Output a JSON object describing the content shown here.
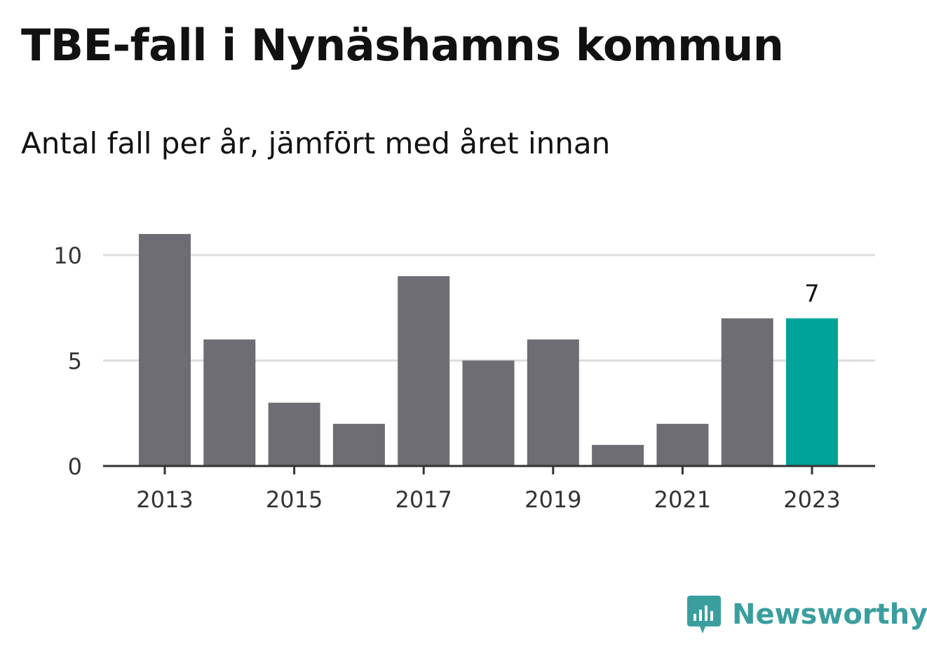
{
  "title": "TBE-fall i Nynäshamns kommun",
  "subtitle": "Antal fall per år, jämfört med året innan",
  "brand": {
    "name": "Newsworthy",
    "color": "#3a9e9e",
    "icon": "chart-speech-bubble-icon"
  },
  "colors": {
    "bar": "#6e6d73",
    "highlight": "#00a39a",
    "grid": "#dddddd",
    "axis": "#333333"
  },
  "chart_data": {
    "type": "bar",
    "categories": [
      "2013",
      "2014",
      "2015",
      "2016",
      "2017",
      "2018",
      "2019",
      "2020",
      "2021",
      "2022",
      "2023"
    ],
    "values": [
      11,
      6,
      3,
      2,
      9,
      5,
      6,
      1,
      2,
      7,
      7
    ],
    "highlight_index": 10,
    "value_labels": [
      {
        "index": 10,
        "text": "7"
      }
    ],
    "x_tick_labels": [
      "2013",
      "2015",
      "2017",
      "2019",
      "2021",
      "2023"
    ],
    "y_ticks": [
      0,
      5,
      10
    ],
    "ylim": [
      0,
      11
    ],
    "grid": true,
    "xlabel": "",
    "ylabel": ""
  }
}
